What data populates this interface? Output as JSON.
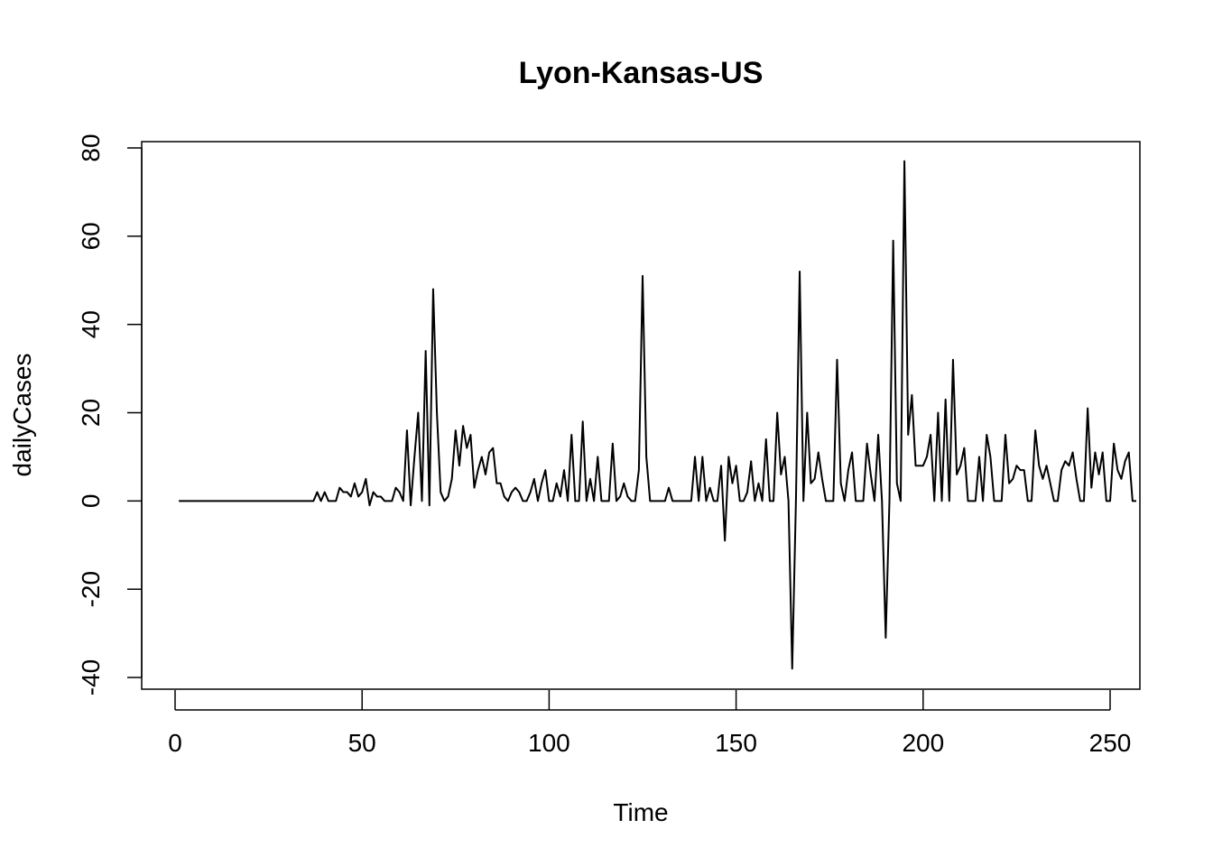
{
  "chart_data": {
    "type": "line",
    "title": "Lyon-Kansas-US",
    "xlabel": "Time",
    "ylabel": "dailyCases",
    "xlim": [
      0,
      250
    ],
    "ylim": [
      -40,
      80
    ],
    "x_ticks": [
      0,
      50,
      100,
      150,
      200,
      250
    ],
    "y_ticks": [
      -40,
      -20,
      0,
      20,
      40,
      60,
      80
    ],
    "grid": false,
    "legend": "none",
    "series": [
      {
        "color": "#000000",
        "x_start": 1,
        "x_step": 1,
        "values": [
          0,
          0,
          0,
          0,
          0,
          0,
          0,
          0,
          0,
          0,
          0,
          0,
          0,
          0,
          0,
          0,
          0,
          0,
          0,
          0,
          0,
          0,
          0,
          0,
          0,
          0,
          0,
          0,
          0,
          0,
          0,
          0,
          0,
          0,
          0,
          0,
          0,
          2,
          0,
          2,
          0,
          0,
          0,
          3,
          2,
          2,
          1,
          4,
          1,
          2,
          5,
          -1,
          2,
          1,
          1,
          0,
          0,
          0,
          3,
          2,
          0,
          16,
          -1,
          10,
          20,
          0,
          34,
          -1,
          48,
          20,
          2,
          0,
          1,
          5,
          16,
          8,
          17,
          12,
          15,
          3,
          7,
          10,
          6,
          11,
          12,
          4,
          4,
          1,
          0,
          2,
          3,
          2,
          0,
          0,
          2,
          5,
          0,
          4,
          7,
          0,
          0,
          4,
          1,
          7,
          0,
          15,
          0,
          0,
          18,
          0,
          5,
          0,
          10,
          0,
          0,
          0,
          13,
          0,
          1,
          4,
          1,
          0,
          0,
          7,
          51,
          10,
          0,
          0,
          0,
          0,
          0,
          3,
          0,
          0,
          0,
          0,
          0,
          0,
          10,
          0,
          10,
          0,
          3,
          0,
          0,
          8,
          -9,
          10,
          4,
          8,
          0,
          0,
          2,
          9,
          0,
          4,
          0,
          14,
          0,
          0,
          20,
          6,
          10,
          0,
          -38,
          0,
          52,
          0,
          20,
          4,
          5,
          11,
          5,
          0,
          0,
          0,
          32,
          4,
          0,
          7,
          11,
          0,
          0,
          0,
          13,
          6,
          0,
          15,
          0,
          -31,
          0,
          59,
          4,
          0,
          77,
          15,
          24,
          8,
          8,
          8,
          10,
          15,
          0,
          20,
          0,
          23,
          0,
          32,
          6,
          8,
          12,
          0,
          0,
          0,
          10,
          0,
          15,
          10,
          0,
          0,
          0,
          15,
          4,
          5,
          8,
          7,
          7,
          0,
          0,
          16,
          8,
          5,
          8,
          4,
          0,
          0,
          7,
          9,
          8,
          11,
          5,
          0,
          0,
          21,
          3,
          11,
          6,
          11,
          0,
          0,
          13,
          7,
          5,
          9,
          11,
          0,
          0
        ]
      }
    ]
  }
}
